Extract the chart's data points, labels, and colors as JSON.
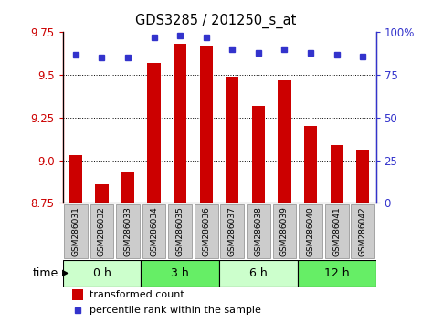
{
  "title": "GDS3285 / 201250_s_at",
  "samples": [
    "GSM286031",
    "GSM286032",
    "GSM286033",
    "GSM286034",
    "GSM286035",
    "GSM286036",
    "GSM286037",
    "GSM286038",
    "GSM286039",
    "GSM286040",
    "GSM286041",
    "GSM286042"
  ],
  "transformed_count": [
    9.03,
    8.86,
    8.93,
    9.57,
    9.68,
    9.67,
    9.49,
    9.32,
    9.47,
    9.2,
    9.09,
    9.06
  ],
  "percentile_rank": [
    87,
    85,
    85,
    97,
    98,
    97,
    90,
    88,
    90,
    88,
    87,
    86
  ],
  "bar_color": "#cc0000",
  "dot_color": "#3333cc",
  "bar_bottom": 8.75,
  "ylim_left": [
    8.75,
    9.75
  ],
  "ylim_right": [
    0,
    100
  ],
  "yticks_left": [
    8.75,
    9.0,
    9.25,
    9.5,
    9.75
  ],
  "yticks_right": [
    0,
    25,
    50,
    75,
    100
  ],
  "grid_lines": [
    9.0,
    9.25,
    9.5
  ],
  "time_groups": [
    {
      "label": "0 h",
      "samples": [
        0,
        1,
        2
      ],
      "color": "#ccffcc"
    },
    {
      "label": "3 h",
      "samples": [
        3,
        4,
        5
      ],
      "color": "#66ee66"
    },
    {
      "label": "6 h",
      "samples": [
        6,
        7,
        8
      ],
      "color": "#ccffcc"
    },
    {
      "label": "12 h",
      "samples": [
        9,
        10,
        11
      ],
      "color": "#66ee66"
    }
  ],
  "legend_bar_label": "transformed count",
  "legend_dot_label": "percentile rank within the sample",
  "xlabel": "time",
  "tick_color_left": "#cc0000",
  "tick_color_right": "#3333cc",
  "xticklabel_bg": "#cccccc",
  "xticklabel_edge": "#999999"
}
